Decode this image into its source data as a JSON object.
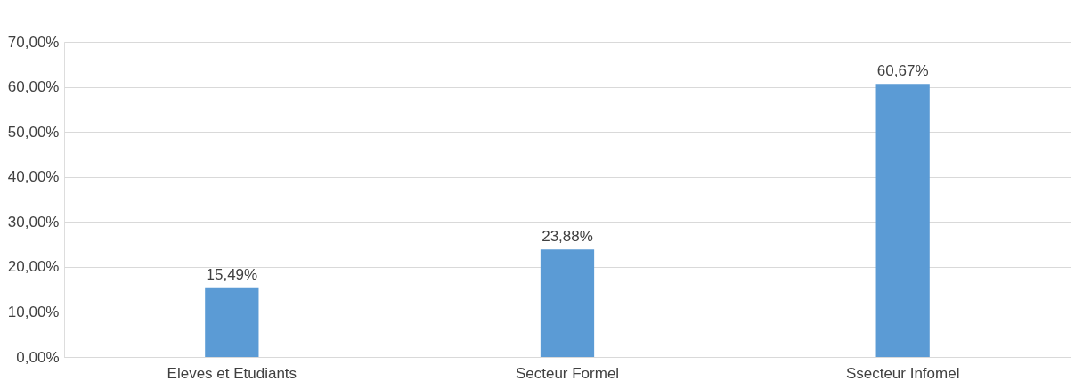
{
  "chart_data": {
    "type": "bar",
    "categories": [
      "Eleves et Etudiants",
      "Secteur Formel",
      "Ssecteur Infomel"
    ],
    "values": [
      15.49,
      23.88,
      60.67
    ],
    "color": "#5b9bd5",
    "value_labels": [
      "15,49%",
      "23,88%",
      "60,67%"
    ],
    "ylim": [
      0,
      70
    ],
    "yticks": [
      {
        "value": 0,
        "label": "0,00%"
      },
      {
        "value": 10,
        "label": "10,00%"
      },
      {
        "value": 20,
        "label": "20,00%"
      },
      {
        "value": 30,
        "label": "30,00%"
      },
      {
        "value": 40,
        "label": "40,00%"
      },
      {
        "value": 50,
        "label": "50,00%"
      },
      {
        "value": 60,
        "label": "60,00%"
      },
      {
        "value": 70,
        "label": "70,00%"
      }
    ],
    "grid": "y"
  }
}
